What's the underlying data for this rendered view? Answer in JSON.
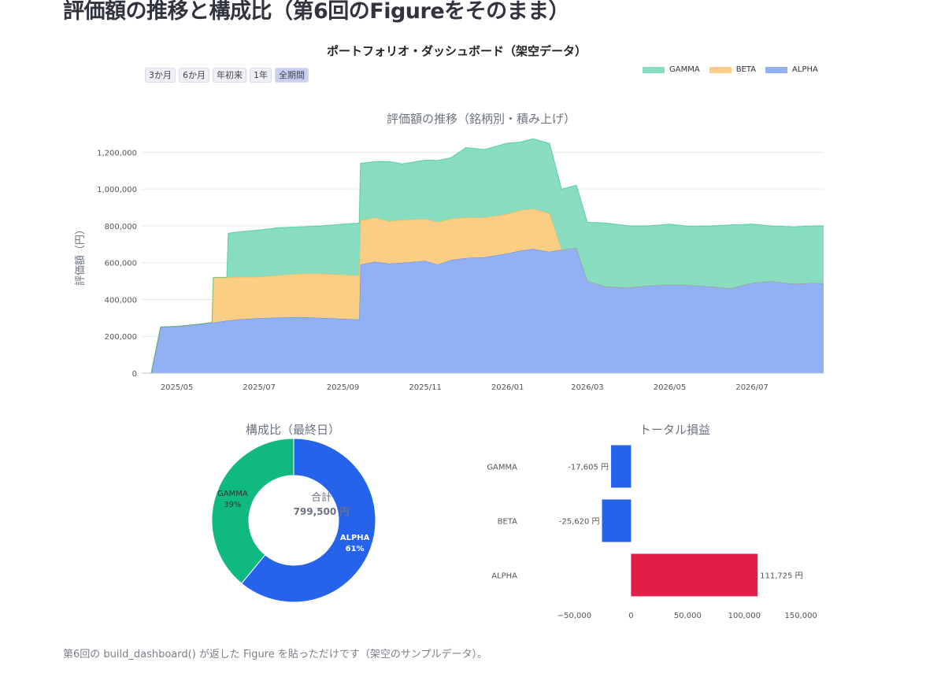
{
  "page": {
    "title": "評価額の推移と構成比（第6回のFigureをそのまま）",
    "caption": "第6回の build_dashboard() が返した Figure を貼っただけです（架空のサンプルデータ）。"
  },
  "figure": {
    "title": "ポートフォリオ・ダッシュボード（架空データ）",
    "range_buttons": [
      "3か月",
      "6か月",
      "年初来",
      "1年",
      "全期間"
    ],
    "active_range": "全期間"
  },
  "colors": {
    "alpha": "#2563eb",
    "beta": "#f59e0b",
    "gamma": "#10b981",
    "loss": "#2563eb",
    "gain": "#e11d48"
  },
  "legend": [
    {
      "name": "GAMMA",
      "color": "#10b981"
    },
    {
      "name": "BETA",
      "color": "#f59e0b"
    },
    {
      "name": "ALPHA",
      "color": "#2563eb"
    }
  ],
  "chart_data": [
    {
      "type": "area",
      "title": "評価額の推移（銘柄別・積み上げ）",
      "xlabel": "",
      "ylabel": "評価額（円）",
      "x_ticks": [
        "2025/05",
        "2025/07",
        "2025/09",
        "2025/11",
        "2026/01",
        "2026/03",
        "2026/05",
        "2026/07"
      ],
      "y_ticks": [
        "0",
        "200,000",
        "400,000",
        "600,000",
        "800,000",
        "1,000,000",
        "1,200,000"
      ],
      "xlim": [
        "2025-04-05",
        "2026-08-23"
      ],
      "ylim": [
        0,
        1300000
      ],
      "grid": true,
      "stacked": true,
      "x": [
        "2025-04-05",
        "2025-04-12",
        "2025-04-19",
        "2025-05-03",
        "2025-05-17",
        "2025-05-27",
        "2025-05-28",
        "2025-06-07",
        "2025-06-08",
        "2025-06-15",
        "2025-07-01",
        "2025-07-15",
        "2025-08-01",
        "2025-08-15",
        "2025-09-01",
        "2025-09-13",
        "2025-09-14",
        "2025-09-25",
        "2025-10-05",
        "2025-10-15",
        "2025-11-01",
        "2025-11-10",
        "2025-11-20",
        "2025-12-01",
        "2025-12-15",
        "2026-01-01",
        "2026-01-10",
        "2026-01-20",
        "2026-01-31",
        "2026-02-01",
        "2026-02-10",
        "2026-02-20",
        "2026-02-21",
        "2026-03-01",
        "2026-03-15",
        "2026-04-01",
        "2026-04-15",
        "2026-05-01",
        "2026-05-15",
        "2026-06-01",
        "2026-06-15",
        "2026-07-01",
        "2026-07-15",
        "2026-08-01",
        "2026-08-15",
        "2026-08-23"
      ],
      "series": [
        {
          "name": "ALPHA",
          "values": [
            0,
            0,
            250000,
            255000,
            265000,
            275000,
            275000,
            285000,
            285000,
            292000,
            298000,
            302000,
            305000,
            300000,
            295000,
            292000,
            590000,
            605000,
            595000,
            600000,
            610000,
            590000,
            615000,
            625000,
            630000,
            650000,
            665000,
            675000,
            660000,
            660000,
            670000,
            680000,
            680000,
            500000,
            470000,
            465000,
            475000,
            480000,
            478000,
            470000,
            460000,
            490000,
            500000,
            485000,
            490000,
            488000
          ]
        },
        {
          "name": "BETA",
          "values": [
            0,
            0,
            0,
            0,
            0,
            0,
            245000,
            235000,
            235000,
            230000,
            225000,
            230000,
            235000,
            240000,
            240000,
            238000,
            240000,
            240000,
            230000,
            232000,
            228000,
            230000,
            225000,
            220000,
            215000,
            215000,
            220000,
            218000,
            210000,
            210000,
            0,
            0,
            0,
            0,
            0,
            0,
            0,
            0,
            0,
            0,
            0,
            0,
            0,
            0,
            0,
            0
          ]
        },
        {
          "name": "GAMMA",
          "values": [
            0,
            0,
            0,
            0,
            0,
            0,
            0,
            0,
            240000,
            245000,
            255000,
            258000,
            255000,
            260000,
            275000,
            285000,
            310000,
            305000,
            325000,
            305000,
            320000,
            335000,
            330000,
            380000,
            370000,
            385000,
            370000,
            380000,
            380000,
            380000,
            330000,
            340000,
            340000,
            320000,
            345000,
            335000,
            325000,
            330000,
            320000,
            330000,
            345000,
            320000,
            300000,
            310000,
            310000,
            312000
          ]
        }
      ]
    },
    {
      "type": "pie",
      "title": "構成比（最終日）",
      "hole": true,
      "center_label": "合計",
      "center_value": "799,500 円",
      "labels": [
        "ALPHA",
        "GAMMA"
      ],
      "values": [
        61,
        39
      ],
      "text": [
        "61%",
        "39%"
      ],
      "colors": [
        "#2563eb",
        "#10b981"
      ]
    },
    {
      "type": "bar",
      "orientation": "horizontal",
      "title": "トータル損益",
      "categories": [
        "GAMMA",
        "BETA",
        "ALPHA"
      ],
      "values": [
        -17605,
        -25620,
        111725
      ],
      "value_labels": [
        "-17,605 円",
        "-25,620 円",
        "111,725 円"
      ],
      "x_ticks": [
        "−50,000",
        "0",
        "50,000",
        "100,000",
        "150,000"
      ],
      "xlim": [
        -67000,
        170000
      ]
    }
  ]
}
